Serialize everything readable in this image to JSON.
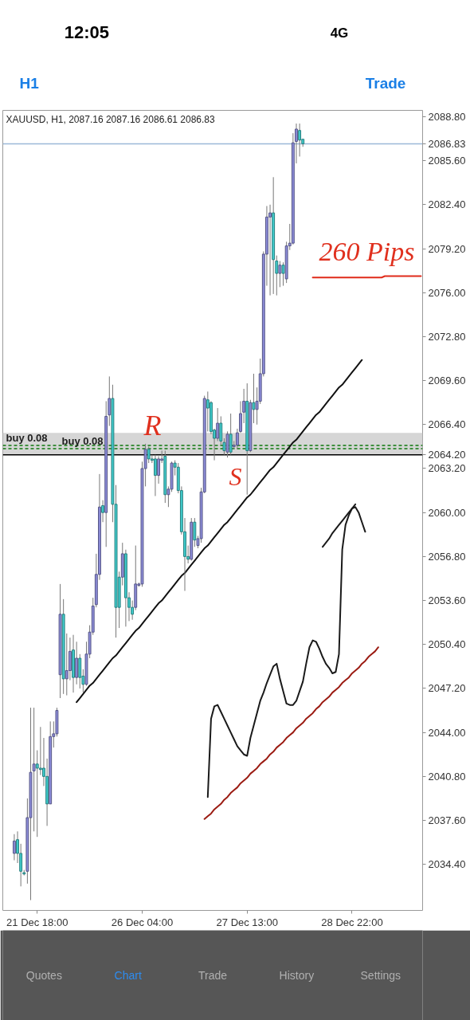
{
  "chart_data": {
    "type": "candlestick",
    "title": "XAUUSD, H1, 2087.16 2087.16 2086.61 2086.83",
    "categories": [
      null,
      null,
      null,
      null,
      null,
      null,
      null,
      null,
      null,
      null,
      "21 Dec 18:00",
      null,
      null,
      null,
      null,
      null,
      null,
      null,
      null,
      null,
      null,
      null,
      null,
      null,
      null,
      null,
      null,
      null,
      null,
      null,
      null,
      null,
      null,
      null,
      null,
      null,
      null,
      null,
      null,
      null,
      null,
      null,
      "26 Dec 04:00",
      null,
      null,
      null,
      null,
      null,
      null,
      null,
      null,
      null,
      null,
      null,
      null,
      null,
      null,
      null,
      null,
      null,
      null,
      null,
      null,
      null,
      null,
      null,
      null,
      null,
      null,
      null,
      null,
      null,
      null,
      null,
      "27 Dec 13:00",
      null,
      null,
      null,
      null,
      null,
      null,
      null,
      null,
      null,
      null,
      null,
      null,
      null,
      null,
      null,
      null,
      null,
      null,
      null,
      null,
      null,
      null,
      null,
      null,
      null,
      null,
      null,
      null,
      null,
      null,
      null,
      "28 Dec 22:00",
      null,
      null,
      null,
      null,
      null,
      null,
      null,
      null,
      null,
      null,
      null,
      null,
      null,
      null,
      null,
      null,
      null,
      null,
      null,
      null,
      null
    ],
    "ohlc": [
      null,
      null,
      null,
      [
        2035.2,
        2036.6,
        2034.7,
        2036.1
      ],
      [
        2036.2,
        2036.8,
        2034.5,
        2035.2
      ],
      [
        2035.2,
        2035.9,
        2032.8,
        2033.9
      ],
      [
        2033.8,
        2034.0,
        2033.6,
        2033.7
      ],
      [
        2033.9,
        2039.2,
        2033.0,
        2037.8
      ],
      [
        2037.8,
        2045.8,
        2031.8,
        2041.1
      ],
      [
        2041.2,
        2045.8,
        2036.8,
        2041.7
      ],
      [
        2041.7,
        2042.7,
        2036.4,
        2041.4
      ],
      [
        2041.4,
        2044.4,
        2040.9,
        2041.3
      ],
      [
        2041.4,
        2043.6,
        2040.1,
        2040.8
      ],
      [
        2040.8,
        2042.1,
        2037.2,
        2038.8
      ],
      [
        2038.8,
        2044.8,
        2038.8,
        2043.7
      ],
      [
        2043.7,
        2044.8,
        2042.9,
        2043.9
      ],
      [
        2043.9,
        2045.8,
        2043.7,
        2045.6
      ],
      [
        2048.2,
        2054.8,
        2046.5,
        2052.6
      ],
      [
        2052.6,
        2053.7,
        2046.8,
        2047.9
      ],
      [
        2047.9,
        2051.2,
        2046.7,
        2048.5
      ],
      [
        2048.5,
        2050.9,
        2047.8,
        2049.9
      ],
      [
        2050.0,
        2051.1,
        2046.9,
        2048.0
      ],
      [
        2048.0,
        2050.6,
        2047.5,
        2049.4
      ],
      [
        2049.4,
        2049.7,
        2047.2,
        2048.0
      ],
      [
        2048.1,
        2048.6,
        2046.9,
        2047.5
      ],
      [
        2047.5,
        2050.6,
        2047.4,
        2049.7
      ],
      [
        2049.7,
        2051.8,
        2049.4,
        2051.3
      ],
      [
        2051.3,
        2053.8,
        2051.1,
        2053.2
      ],
      [
        2053.3,
        2057.0,
        2053.1,
        2055.5
      ],
      [
        2055.5,
        2062.8,
        2055.1,
        2060.4
      ],
      [
        2060.5,
        2060.9,
        2059.3,
        2060.0
      ],
      [
        2060.0,
        2068.1,
        2057.5,
        2067.0
      ],
      [
        2067.1,
        2069.9,
        2066.3,
        2068.3
      ],
      [
        2068.3,
        2069.3,
        2059.3,
        2060.6
      ],
      [
        2060.6,
        2062.0,
        2050.9,
        2053.1
      ],
      [
        2055.3,
        2055.7,
        2051.6,
        2053.1
      ],
      [
        2055.3,
        2057.8,
        2054.7,
        2057.0
      ],
      [
        2057.0,
        2057.3,
        2051.7,
        2053.8
      ],
      [
        2053.8,
        2054.2,
        2052.1,
        2053.1
      ],
      [
        2053.1,
        2053.6,
        2052.2,
        2052.6
      ],
      [
        2053.1,
        2057.6,
        2052.9,
        2054.8
      ],
      [
        2054.7,
        2054.9,
        2054.6,
        2054.8
      ],
      [
        2054.8,
        2063.7,
        2054.6,
        2063.2
      ],
      [
        2063.2,
        2065.0,
        2061.9,
        2064.6
      ],
      [
        2064.6,
        2064.8,
        2063.6,
        2063.9
      ],
      [
        2063.9,
        2064.2,
        2063.6,
        2063.8
      ],
      [
        2063.9,
        2064.2,
        2061.2,
        2062.7
      ],
      [
        2062.7,
        2064.1,
        2062.1,
        2063.9
      ],
      [
        2063.8,
        2064.5,
        2063.6,
        2063.9
      ],
      [
        2064.1,
        2064.5,
        2060.7,
        2061.3
      ],
      [
        2061.3,
        2061.9,
        2060.4,
        2061.7
      ],
      [
        2061.7,
        2063.7,
        2061.5,
        2063.6
      ],
      [
        2063.6,
        2063.8,
        2062.7,
        2063.3
      ],
      [
        2063.3,
        2063.6,
        2061.4,
        2061.6
      ],
      [
        2061.6,
        2061.9,
        2058.4,
        2058.6
      ],
      [
        2058.6,
        2059.6,
        2054.3,
        2056.8
      ],
      [
        2056.8,
        2057.6,
        2056.3,
        2056.6
      ],
      [
        2056.6,
        2059.6,
        2056.5,
        2059.3
      ],
      [
        2059.3,
        2059.6,
        2057.5,
        2058.0
      ],
      [
        2057.6,
        2058.3,
        2057.4,
        2058.1
      ],
      [
        2058.1,
        2061.8,
        2057.8,
        2061.5
      ],
      [
        2061.5,
        2068.5,
        2061.4,
        2068.3
      ],
      [
        2068.2,
        2068.8,
        2065.9,
        2067.6
      ],
      [
        2068.0,
        2068.1,
        2065.7,
        2065.9
      ],
      [
        2066.0,
        2066.1,
        2063.8,
        2065.4
      ],
      [
        2065.4,
        2067.6,
        2065.2,
        2066.5
      ],
      [
        2066.5,
        2067.0,
        2064.9,
        2065.2
      ],
      [
        2065.1,
        2065.4,
        2064.2,
        2064.5
      ],
      [
        2064.4,
        2065.9,
        2064.0,
        2065.7
      ],
      [
        2065.7,
        2067.2,
        2064.2,
        2064.4
      ],
      [
        2064.8,
        2065.2,
        2064.6,
        2064.9
      ],
      [
        2064.9,
        2066.1,
        2064.6,
        2065.8
      ],
      [
        2065.9,
        2068.1,
        2065.8,
        2067.2
      ],
      [
        2067.3,
        2069.0,
        2066.5,
        2068.1
      ],
      [
        2068.1,
        2069.4,
        2061.3,
        2064.5
      ],
      [
        2064.5,
        2068.2,
        2064.4,
        2068.0
      ],
      [
        2068.0,
        2070.1,
        2066.5,
        2067.5
      ],
      [
        2067.5,
        2069.1,
        2066.4,
        2068.1
      ],
      [
        2068.1,
        2071.2,
        2067.9,
        2070.1
      ],
      [
        2070.1,
        2079.0,
        2069.9,
        2078.8
      ],
      [
        2078.8,
        2082.3,
        2076.5,
        2081.5
      ],
      [
        2081.5,
        2082.4,
        2075.8,
        2081.8
      ],
      [
        2081.8,
        2084.4,
        2075.9,
        2078.4
      ],
      [
        2078.3,
        2078.7,
        2075.8,
        2077.4
      ],
      [
        2077.4,
        2078.3,
        2076.4,
        2078.0
      ],
      [
        2078.0,
        2078.2,
        2076.5,
        2077.4
      ],
      [
        2077.0,
        2079.7,
        2076.7,
        2079.4
      ],
      [
        2079.4,
        2081.0,
        2079.1,
        2079.6
      ],
      [
        2079.6,
        2087.6,
        2079.5,
        2086.9
      ],
      [
        2087.0,
        2088.3,
        2085.4,
        2087.9
      ],
      [
        2087.8,
        2088.3,
        2085.9,
        2087.1
      ],
      [
        2087.16,
        2087.16,
        2086.61,
        2086.83
      ],
      null,
      null,
      null,
      null,
      null,
      null,
      null,
      null,
      null,
      null,
      null,
      null,
      null,
      null,
      null,
      null,
      null,
      null,
      null,
      null,
      null,
      null,
      null,
      null,
      null,
      null,
      null,
      null,
      null,
      null,
      null,
      null,
      null,
      null,
      null,
      null
    ],
    "colors": [
      null,
      null,
      null,
      "#8c8cd9",
      "#40cccc",
      "#40cccc",
      "#40cccc",
      "#8c8cd9",
      "#8c8cd9",
      "#8c8cd9",
      "#40cccc",
      "#40cccc",
      "#40cccc",
      "#40cccc",
      "#8c8cd9",
      "#8c8cd9",
      "#8c8cd9",
      "#8c8cd9",
      "#40cccc",
      "#8c8cd9",
      "#8c8cd9",
      "#40cccc",
      "#8c8cd9",
      "#40cccc",
      "#40cccc",
      "#8c8cd9",
      "#8c8cd9",
      "#8c8cd9",
      "#8c8cd9",
      "#8c8cd9",
      "#40cccc",
      "#8c8cd9",
      "#8c8cd9",
      "#40cccc",
      "#40cccc",
      "#40cccc",
      "#8c8cd9",
      "#40cccc",
      "#40cccc",
      "#40cccc",
      "#8c8cd9",
      "#8c8cd9",
      "#8c8cd9",
      "#8c8cd9",
      "#40cccc",
      "#40cccc",
      "#40cccc",
      "#8c8cd9",
      "#8c8cd9",
      "#40cccc",
      "#8c8cd9",
      "#8c8cd9",
      "#40cccc",
      "#40cccc",
      "#40cccc",
      "#40cccc",
      "#40cccc",
      "#8c8cd9",
      "#40cccc",
      "#8c8cd9",
      "#8c8cd9",
      "#8c8cd9",
      "#40cccc",
      "#40cccc",
      "#40cccc",
      "#8c8cd9",
      "#40cccc",
      "#40cccc",
      "#8c8cd9",
      "#40cccc",
      "#8c8cd9",
      "#8c8cd9",
      "#8c8cd9",
      "#8c8cd9",
      "#40cccc",
      "#8c8cd9",
      "#40cccc",
      "#8c8cd9",
      "#8c8cd9",
      "#8c8cd9",
      "#8c8cd9",
      "#8c8cd9",
      "#40cccc",
      "#40cccc",
      "#8c8cd9",
      "#40cccc",
      "#8c8cd9",
      "#8c8cd9",
      "#8c8cd9",
      "#8c8cd9",
      "#40cccc",
      "#40cccc",
      null,
      null,
      null,
      null,
      null,
      null,
      null,
      null,
      null,
      null,
      null,
      null,
      null,
      null,
      null,
      null,
      null,
      null,
      null,
      null,
      null,
      null,
      null,
      null,
      null,
      null,
      null,
      null,
      null,
      null,
      null,
      null,
      null,
      null,
      null,
      null
    ],
    "series": [
      {
        "type": "line",
        "color": "#111111",
        "values": [
          null,
          null,
          null,
          null,
          null,
          null,
          null,
          null,
          null,
          null,
          null,
          null,
          null,
          null,
          null,
          null,
          null,
          null,
          null,
          null,
          null,
          null,
          2046.2,
          2046.5,
          2046.8,
          2047.1,
          2047.4,
          2047.6,
          2047.9,
          2048.2,
          2048.5,
          2048.8,
          2049.1,
          2049.4,
          2049.6,
          2049.9,
          2050.2,
          2050.5,
          2050.8,
          2051.1,
          2051.4,
          2051.6,
          2051.9,
          2052.2,
          2052.5,
          2052.8,
          2053.1,
          2053.4,
          2053.6,
          2053.9,
          2054.2,
          2054.5,
          2054.8,
          2055.1,
          2055.4,
          2055.6,
          2055.9,
          2056.2,
          2056.5,
          2056.8,
          2057.1,
          2057.4,
          2057.6,
          2057.9,
          2058.2,
          2058.5,
          2058.8,
          2059.1,
          2059.3,
          2059.6,
          2059.9,
          2060.2,
          2060.5,
          2060.8,
          2061.1,
          2061.3,
          2061.6,
          2061.9,
          2062.2,
          2062.5,
          2062.8,
          2063.1,
          2063.3,
          2063.6,
          2063.9,
          2064.2,
          2064.5,
          2064.8,
          2065.1,
          2065.3,
          2065.6,
          2065.9,
          2066.2,
          2066.5,
          2066.8,
          2067.1,
          2067.3,
          2067.6,
          2067.9,
          2068.2,
          2068.5,
          2068.8,
          2069.1,
          2069.3,
          2069.6,
          2069.9,
          2070.2,
          2070.5,
          2070.8,
          2071.1,
          null,
          null,
          null,
          null,
          null,
          null,
          null,
          null,
          null,
          null,
          null,
          null,
          null,
          null,
          null,
          null,
          null,
          null
        ]
      },
      {
        "type": "line",
        "color": "#9b1b12",
        "values": [
          null,
          null,
          null,
          null,
          null,
          null,
          null,
          null,
          null,
          null,
          null,
          null,
          null,
          null,
          null,
          null,
          null,
          null,
          null,
          null,
          null,
          null,
          null,
          null,
          null,
          null,
          null,
          null,
          null,
          null,
          null,
          null,
          null,
          null,
          null,
          null,
          null,
          null,
          null,
          null,
          null,
          null,
          null,
          null,
          null,
          null,
          null,
          null,
          null,
          null,
          null,
          null,
          null,
          null,
          null,
          null,
          null,
          null,
          null,
          null,
          null,
          2037.7,
          2037.9,
          2038.1,
          2038.4,
          2038.6,
          2038.8,
          2039.1,
          2039.3,
          2039.6,
          2039.8,
          2040.0,
          2040.3,
          2040.5,
          2040.7,
          2041.0,
          2041.2,
          2041.4,
          2041.7,
          2041.9,
          2042.1,
          2042.4,
          2042.6,
          2042.9,
          2043.1,
          2043.3,
          2043.6,
          2043.8,
          2044.0,
          2044.3,
          2044.5,
          2044.7,
          2045.0,
          2045.2,
          2045.4,
          2045.7,
          2045.9,
          2046.2,
          2046.4,
          2046.6,
          2046.9,
          2047.1,
          2047.3,
          2047.6,
          2047.8,
          2048.0,
          2048.3,
          2048.5,
          2048.7,
          2049.0,
          2049.2,
          2049.5,
          2049.7,
          2049.9,
          2050.2,
          null,
          null,
          null,
          null,
          null,
          null,
          null,
          null,
          null,
          null,
          null,
          null,
          null
        ]
      },
      {
        "type": "line",
        "color": "#e02b1a",
        "values": [
          null,
          null,
          null,
          null,
          null,
          null,
          null,
          null,
          null,
          null,
          null,
          null,
          null,
          null,
          null,
          null,
          null,
          null,
          null,
          null,
          null,
          null,
          null,
          null,
          null,
          null,
          null,
          null,
          null,
          null,
          null,
          null,
          null,
          null,
          null,
          null,
          null,
          null,
          null,
          null,
          null,
          null,
          null,
          null,
          null,
          null,
          null,
          null,
          null,
          null,
          null,
          null,
          null,
          null,
          null,
          null,
          null,
          null,
          null,
          null,
          null,
          null,
          null,
          null,
          null,
          null,
          null,
          null,
          null,
          null,
          null,
          null,
          null,
          null,
          null,
          null,
          null,
          null,
          null,
          null,
          null,
          null,
          null,
          null,
          null,
          null,
          null,
          null,
          null,
          null,
          null,
          null,
          null,
          null,
          2077.1,
          2077.1,
          2077.1,
          2077.1,
          2077.1,
          2077.1,
          2077.1,
          2077.1,
          2077.1,
          2077.1,
          2077.1,
          2077.1,
          2077.1,
          2077.1,
          2077.1,
          2077.1,
          2077.1,
          2077.1,
          2077.1,
          2077.1,
          2077.1,
          2077.1,
          2077.2,
          2077.2,
          2077.2,
          2077.2,
          2077.2,
          2077.2,
          2077.2,
          2077.2,
          2077.2,
          2077.2,
          2077.2,
          2077.2
        ]
      },
      {
        "type": "line",
        "color": "#1a1a1a",
        "values": [
          null,
          null,
          null,
          null,
          null,
          null,
          null,
          null,
          null,
          null,
          null,
          null,
          null,
          null,
          null,
          null,
          null,
          null,
          null,
          null,
          null,
          null,
          null,
          null,
          null,
          null,
          null,
          null,
          null,
          null,
          null,
          null,
          null,
          null,
          null,
          null,
          null,
          null,
          null,
          null,
          null,
          null,
          null,
          null,
          null,
          null,
          null,
          null,
          null,
          null,
          null,
          null,
          null,
          null,
          null,
          null,
          null,
          null,
          null,
          null,
          null,
          null,
          2039.3,
          2045.0,
          2045.9,
          2046.0,
          2045.5,
          2045.0,
          2044.5,
          2044.0,
          2043.5,
          2043.0,
          2042.7,
          2042.4,
          2042.3,
          2043.6,
          2044.5,
          2045.4,
          2046.3,
          2046.9,
          2047.6,
          2048.2,
          2048.8,
          2049.0,
          2047.9,
          2047.0,
          2046.1,
          2046.0,
          2046.0,
          2046.3,
          2047.0,
          2047.7,
          2049.0,
          2050.2,
          2050.7,
          2050.6,
          2050.1,
          2049.5,
          2049.0,
          2048.7,
          2048.3,
          2048.4,
          2049.7,
          2057.3,
          2059.1,
          2059.8,
          2060.3,
          2060.4,
          2060.0,
          2059.3,
          2058.6,
          null,
          null,
          null,
          null,
          null,
          null,
          null,
          null,
          null,
          null,
          null,
          null,
          null,
          null,
          null,
          null,
          null
        ]
      },
      {
        "type": "line",
        "color": "#1a1a1a",
        "values": [
          null,
          null,
          null,
          null,
          null,
          null,
          null,
          null,
          null,
          null,
          null,
          null,
          null,
          null,
          null,
          null,
          null,
          null,
          null,
          null,
          null,
          null,
          null,
          null,
          null,
          null,
          null,
          null,
          null,
          null,
          null,
          null,
          null,
          null,
          null,
          null,
          null,
          null,
          null,
          null,
          null,
          null,
          null,
          null,
          null,
          null,
          null,
          null,
          null,
          null,
          null,
          null,
          null,
          null,
          null,
          null,
          null,
          null,
          null,
          null,
          null,
          null,
          null,
          null,
          null,
          null,
          null,
          null,
          null,
          null,
          null,
          null,
          null,
          null,
          null,
          null,
          null,
          null,
          null,
          null,
          null,
          null,
          null,
          null,
          null,
          null,
          null,
          null,
          null,
          null,
          null,
          null,
          null,
          null,
          null,
          null,
          null,
          2057.5,
          2057.8,
          2058.1,
          2058.5,
          2058.8,
          2059.1,
          2059.4,
          2059.7,
          2060.0,
          2060.3,
          2060.6,
          null,
          null,
          null,
          null,
          null,
          null,
          null,
          null,
          null,
          null,
          null,
          null,
          null,
          null,
          null,
          null,
          null,
          null,
          null,
          null
        ]
      }
    ],
    "ylim": [
      2031.05,
      2089.26
    ],
    "yticks": [
      {
        "value": 2034.4,
        "label": "2034.40"
      },
      {
        "value": 2037.6,
        "label": "2037.60"
      },
      {
        "value": 2040.8,
        "label": "2040.80"
      },
      {
        "value": 2044,
        "label": "2044.00"
      },
      {
        "value": 2047.2,
        "label": "2047.20"
      },
      {
        "value": 2050.4,
        "label": "2050.40"
      },
      {
        "value": 2053.6,
        "label": "2053.60"
      },
      {
        "value": 2056.8,
        "label": "2056.80"
      },
      {
        "value": 2060,
        "label": "2060.00"
      },
      {
        "value": 2063.2,
        "label": "2063.20"
      },
      {
        "value": 2066.4,
        "label": "2066.40"
      },
      {
        "value": 2069.6,
        "label": "2069.60"
      },
      {
        "value": 2072.8,
        "label": "2072.80"
      },
      {
        "value": 2076,
        "label": "2076.00"
      },
      {
        "value": 2079.2,
        "label": "2079.20"
      },
      {
        "value": 2082.4,
        "label": "2082.40"
      },
      {
        "value": 2085.6,
        "label": "2085.60"
      },
      {
        "value": 2088.8,
        "label": "2088.80"
      }
    ],
    "bands": [
      {
        "axis": "y",
        "from": 2064.2,
        "to": 2065.8,
        "color": "#d6d6d6"
      }
    ],
    "ref_lines": [
      {
        "axis": "y",
        "value": 2086.83,
        "label": "2086.83",
        "color": "#9cb8d8"
      },
      {
        "axis": "y",
        "value": 2064.2,
        "label": "2064.20",
        "color": "#000000"
      },
      {
        "axis": "y",
        "value": 2064.88,
        "label": "buy 0.08",
        "color": "#3f8f3f",
        "line_style": "dashed"
      },
      {
        "axis": "y",
        "value": 2064.65,
        "label": "buy 0.08",
        "color": "#3f8f3f",
        "line_style": "dashed"
      }
    ],
    "annotations": [
      "12:05",
      "4G",
      "H1",
      "Trade",
      "Quotes",
      "Chart",
      "Trade",
      "History",
      "Settings",
      "R",
      "S",
      "260 Pips"
    ]
  }
}
